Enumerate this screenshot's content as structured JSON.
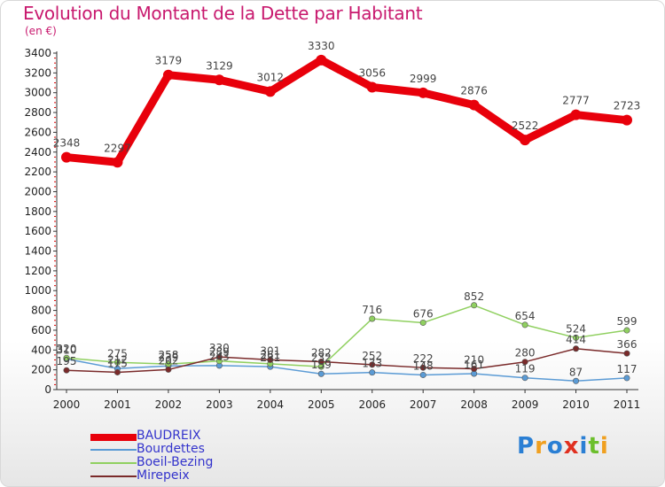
{
  "title": "Evolution du Montant de la Dette par Habitant",
  "subtitle": "(en €)",
  "logo": {
    "letters": [
      {
        "ch": "P",
        "color": "#2a7fd4"
      },
      {
        "ch": "r",
        "color": "#f0a020"
      },
      {
        "ch": "o",
        "color": "#2a7fd4"
      },
      {
        "ch": "x",
        "color": "#e03020"
      },
      {
        "ch": "i",
        "color": "#2a7fd4"
      },
      {
        "ch": "t",
        "color": "#6cbf2c"
      },
      {
        "ch": "i",
        "color": "#f0a020"
      }
    ]
  },
  "chart_data": {
    "type": "line",
    "title": "Evolution du Montant de la Dette par Habitant",
    "subtitle": "(en €)",
    "xlabel": "",
    "ylabel": "",
    "x": [
      "2000",
      "2001",
      "2002",
      "2003",
      "2004",
      "2005",
      "2006",
      "2007",
      "2008",
      "2009",
      "2010",
      "2011"
    ],
    "ylim": [
      0,
      3400
    ],
    "yticks": [
      0,
      200,
      400,
      600,
      800,
      1000,
      1200,
      1400,
      1600,
      1800,
      2000,
      2200,
      2400,
      2600,
      2800,
      3000,
      3200,
      3400
    ],
    "grid": false,
    "legend_position": "bottom-left",
    "series": [
      {
        "name": "BAUDREIX",
        "color": "#e8000b",
        "values": [
          2348,
          2297,
          3179,
          3129,
          3012,
          3330,
          3056,
          2999,
          2876,
          2522,
          2777,
          2723
        ]
      },
      {
        "name": "Bourdettes",
        "color": "#5b9bd5",
        "values": [
          310,
          212,
          239,
          243,
          231,
          159,
          173,
          148,
          161,
          119,
          87,
          117
        ]
      },
      {
        "name": "Boeil-Bezing",
        "color": "#90d060",
        "values": [
          320,
          275,
          258,
          289,
          261,
          232,
          716,
          676,
          852,
          654,
          524,
          599
        ]
      },
      {
        "name": "Mirepeix",
        "color": "#7a2a2a",
        "values": [
          195,
          175,
          202,
          330,
          301,
          282,
          252,
          222,
          210,
          280,
          414,
          366
        ]
      }
    ]
  }
}
